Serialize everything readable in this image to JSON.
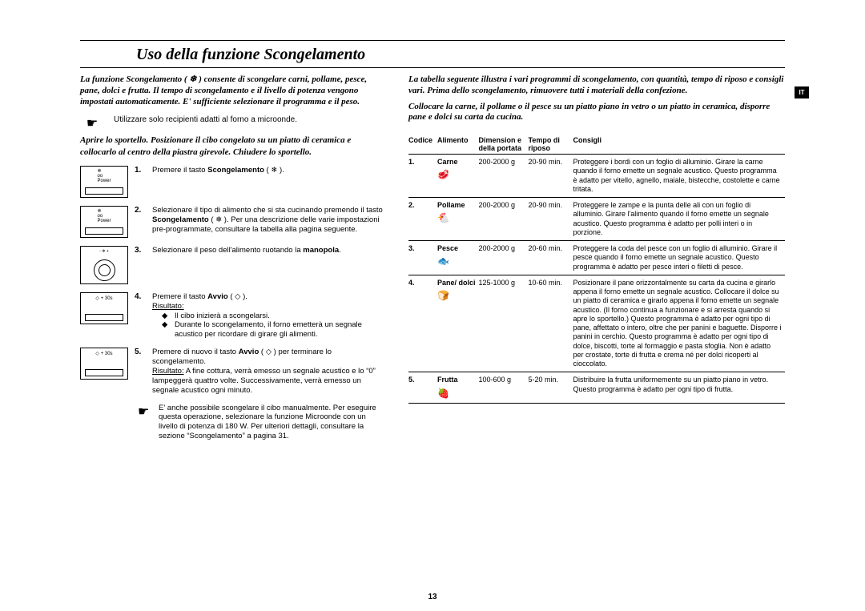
{
  "page_number": "13",
  "side_tab": "IT",
  "title": "Uso della funzione Scongelamento",
  "left": {
    "intro": "La funzione Scongelamento ( ❄ ) consente di scongelare carni, pollame, pesce, pane, dolci e frutta. Il tempo di scongelamento e il livello di potenza vengono impostati automaticamente. E' sufficiente selezionare il programma e il peso.",
    "pointer_tip": "Utilizzare solo recipienti adatti al forno a microonde.",
    "open_instr": "Aprire lo sportello. Posizionare il cibo congelato su un piatto di ceramica e collocarlo al centro della piastra girevole. Chiudere lo sportello.",
    "steps": [
      {
        "num": "1.",
        "text": "Premere il tasto <b>Scongelamento</b> ( ❄ )."
      },
      {
        "num": "2.",
        "text": "Selezionare il tipo di alimento che si sta cucinando premendo il tasto <b>Scongelamento</b> ( ❄ ). Per una descrizione delle varie impostazioni pre-programmate, consultare la tabella alla pagina seguente."
      },
      {
        "num": "3.",
        "text": "Selezionare il peso dell'alimento ruotando la <b>manopola</b>."
      },
      {
        "num": "4.",
        "text": "Premere il tasto <b>Avvio</b> ( ◇ ).",
        "result_label": "Risultato:",
        "bullets": [
          "Il cibo inizierà a scongelarsi.",
          "Durante lo scongelamento, il forno emetterà un segnale acustico per ricordare di girare gli alimenti."
        ]
      },
      {
        "num": "5.",
        "text": "Premere di nuovo il tasto <b>Avvio</b> ( ◇ ) per terminare lo scongelamento.",
        "result_label": "Risultato:",
        "result_text": "A fine cottura, verrà emesso un segnale acustico e lo “0” lampeggerà quattro volte. Successivamente, verrà emesso un segnale acustico ogni minuto."
      }
    ],
    "note": "E' anche possibile scongelare il cibo manualmente. Per eseguire questa operazione, selezionare la funzione Microonde con un livello di potenza di 180 W. Per ulteriori dettagli, consultare la sezione “Scongelamento” a pagina 31."
  },
  "right": {
    "intro": "La tabella seguente illustra i vari programmi di scongelamento, con quantità, tempo di riposo e consigli vari. Prima dello scongelamento, rimuovere tutti i materiali della confezione.",
    "placement": "Collocare la carne, il pollame o il pesce su un piatto piano in vetro o un piatto in ceramica, disporre pane e dolci su carta da cucina.",
    "headers": {
      "code": "Codice",
      "food": "Alimento",
      "dim": "Dimension e della portata",
      "time": "Tempo di riposo",
      "advice": "Consigli"
    },
    "rows": [
      {
        "code": "1.",
        "food": "Carne",
        "icon": "🥩",
        "dim": "200-2000 g",
        "time": "20-90 min.",
        "advice": "Proteggere i bordi con un foglio di alluminio. Girare la carne quando il forno emette un segnale acustico. Questo programma è adatto per vitello, agnello, maiale, bistecche, costolette e carne tritata."
      },
      {
        "code": "2.",
        "food": "Pollame",
        "icon": "🐔",
        "dim": "200-2000 g",
        "time": "20-90 min.",
        "advice": "Proteggere le zampe e la punta delle ali con un foglio di alluminio. Girare l'alimento quando il forno emette un segnale acustico. Questo programma è adatto per polli interi o in porzione."
      },
      {
        "code": "3.",
        "food": "Pesce",
        "icon": "🐟",
        "dim": "200-2000 g",
        "time": "20-60 min.",
        "advice": "Proteggere la coda del pesce con un foglio di alluminio. Girare il pesce quando il forno emette un segnale acustico. Questo programma è adatto per pesce interi o filetti di pesce."
      },
      {
        "code": "4.",
        "food": "Pane/ dolci",
        "icon": "🍞",
        "dim": "125-1000 g",
        "time": "10-60 min.",
        "advice": "Posizionare il pane orizzontalmente su carta da cucina e girarlo appena il forno emette un segnale acustico. Collocare il dolce su un piatto di ceramica e girarlo appena il forno emette un segnale acustico. (Il forno continua a funzionare e si arresta quando si apre lo sportello.) Questo programma è adatto per ogni tipo di pane, affettato o intero, oltre che per panini e baguette. Disporre i panini in cerchio. Questo programma è adatto per ogni tipo di dolce, biscotti, torte al formaggio e pasta sfoglia. Non è adatto per crostate, torte di frutta e crema né per dolci ricoperti al cioccolato."
      },
      {
        "code": "5.",
        "food": "Frutta",
        "icon": "🍓",
        "dim": "100-600 g",
        "time": "5-20 min.",
        "advice": "Distribuire la frutta uniformemente su un piatto piano in vetro. Questo programma è adatto per ogni tipo di frutta."
      }
    ]
  }
}
